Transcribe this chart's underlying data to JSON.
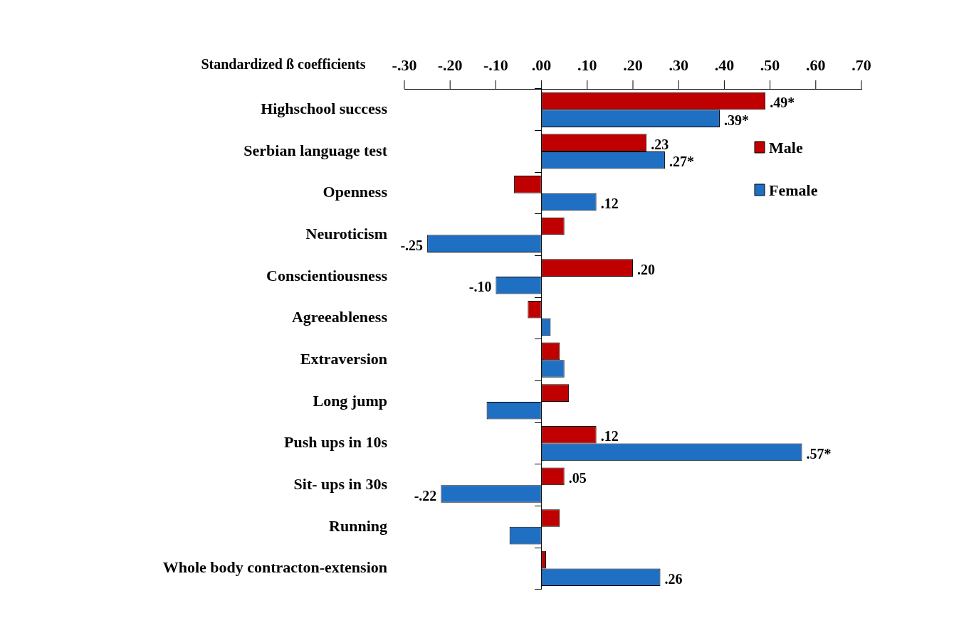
{
  "chart_data": {
    "type": "bar",
    "orientation": "horizontal",
    "xlabel": "Standardized ß coefficients",
    "categories": [
      "Highschool success",
      "Serbian language test",
      "Openness",
      "Neuroticism",
      "Conscientiousness",
      "Agreeableness",
      "Extraversion",
      "Long jump",
      "Push ups in 10s",
      "Sit- ups in 30s",
      "Running",
      "Whole body contracton-extension"
    ],
    "series": [
      {
        "name": "Male",
        "color": "#c00000",
        "values": [
          0.49,
          0.23,
          -0.06,
          0.05,
          0.2,
          -0.03,
          0.04,
          0.06,
          0.12,
          0.05,
          0.04,
          0.01
        ],
        "value_labels": [
          ".49*",
          ".23",
          null,
          null,
          ".20",
          null,
          null,
          null,
          ".12",
          ".05",
          null,
          null
        ]
      },
      {
        "name": "Female",
        "color": "#1f6fc3",
        "values": [
          0.39,
          0.27,
          0.12,
          -0.25,
          -0.1,
          0.02,
          0.05,
          -0.12,
          0.57,
          -0.22,
          -0.07,
          0.26
        ],
        "value_labels": [
          ".39*",
          ".27*",
          ".12",
          "-.25",
          "-.10",
          null,
          null,
          null,
          ".57*",
          "-.22",
          null,
          ".26"
        ]
      }
    ],
    "xlim": [
      -0.3,
      0.7
    ],
    "xticks": [
      {
        "value": -0.3,
        "label": "-.30"
      },
      {
        "value": -0.2,
        "label": "-.20"
      },
      {
        "value": -0.1,
        "label": "-.10"
      },
      {
        "value": 0,
        "label": ".00"
      },
      {
        "value": 0.1,
        "label": ".10"
      },
      {
        "value": 0.2,
        "label": ".20"
      },
      {
        "value": 0.3,
        "label": ".30"
      },
      {
        "value": 0.4,
        "label": ".40"
      },
      {
        "value": 0.5,
        "label": ".50"
      },
      {
        "value": 0.6,
        "label": ".60"
      },
      {
        "value": 0.7,
        "label": ".70"
      }
    ],
    "ref_lines": [
      {
        "axis": "x",
        "value": 0
      }
    ],
    "grid": false,
    "legend": "top right"
  }
}
